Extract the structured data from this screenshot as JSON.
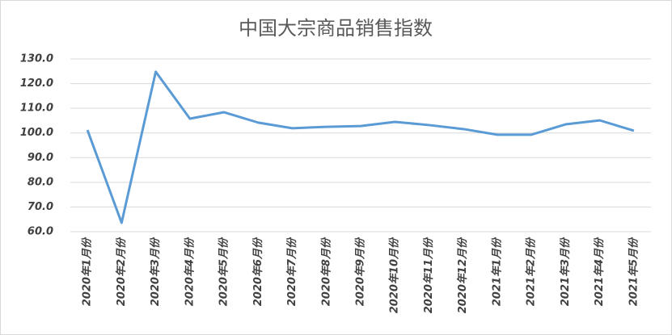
{
  "chart_data": {
    "type": "line",
    "title": "中国大宗商品销售指数",
    "categories": [
      "2020年1月份",
      "2020年2月份",
      "2020年3月份",
      "2020年4月份",
      "2020年5月份",
      "2020年6月份",
      "2020年7月份",
      "2020年8月份",
      "2020年9月份",
      "2020年10月份",
      "2020年11月份",
      "2020年12月份",
      "2021年1月份",
      "2021年2月份",
      "2021年3月份",
      "2021年4月份",
      "2021年5月份"
    ],
    "series": [
      {
        "color": "#5b9bd5",
        "values": [
          101.2,
          63.6,
          124.8,
          105.8,
          108.4,
          104.2,
          101.9,
          102.5,
          102.8,
          104.5,
          103.2,
          101.6,
          99.3,
          99.3,
          103.5,
          105.1,
          100.9
        ]
      }
    ],
    "ylim": [
      60,
      130
    ],
    "yticks": [
      {
        "value": 60,
        "label": "60.0"
      },
      {
        "value": 70,
        "label": "70.0"
      },
      {
        "value": 80,
        "label": "80.0"
      },
      {
        "value": 90,
        "label": "90.0"
      },
      {
        "value": 100,
        "label": "100.0"
      },
      {
        "value": 110,
        "label": "110.0"
      },
      {
        "value": 120,
        "label": "120.0"
      },
      {
        "value": 130,
        "label": "130.0"
      }
    ],
    "grid": true
  }
}
